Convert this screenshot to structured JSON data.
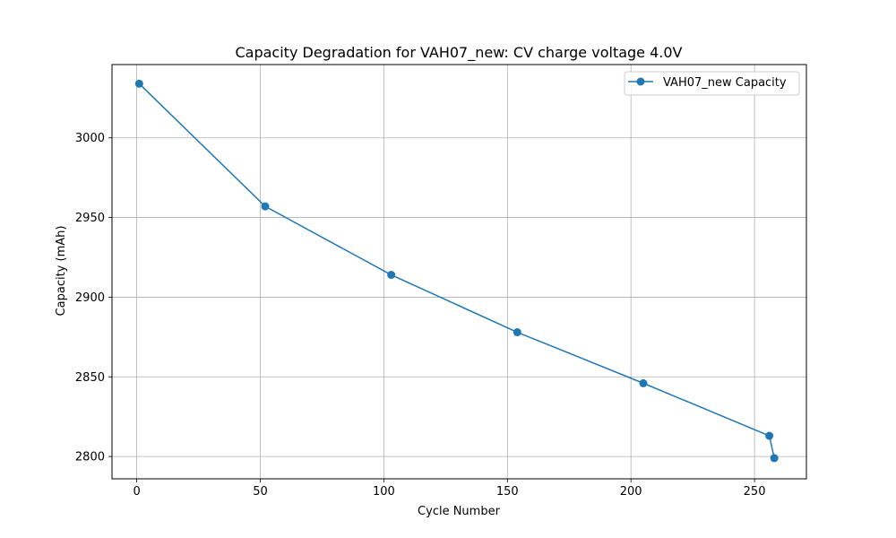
{
  "chart_data": {
    "type": "line",
    "title": "Capacity Degradation for VAH07_new: CV charge voltage 4.0V",
    "xlabel": "Cycle Number",
    "ylabel": "Capacity (mAh)",
    "xlim": [
      -10,
      271
    ],
    "ylim": [
      2786,
      3046
    ],
    "xticks": [
      0,
      50,
      100,
      150,
      200,
      250
    ],
    "yticks": [
      2800,
      2850,
      2900,
      2950,
      3000
    ],
    "grid": true,
    "legend_position": "top-right",
    "series": [
      {
        "name": "VAH07_new Capacity",
        "color": "#1f77b4",
        "marker": "circle",
        "x": [
          1,
          52,
          103,
          154,
          205,
          256,
          258
        ],
        "y": [
          3034,
          2957,
          2914,
          2878,
          2846,
          2813,
          2799
        ]
      }
    ]
  }
}
